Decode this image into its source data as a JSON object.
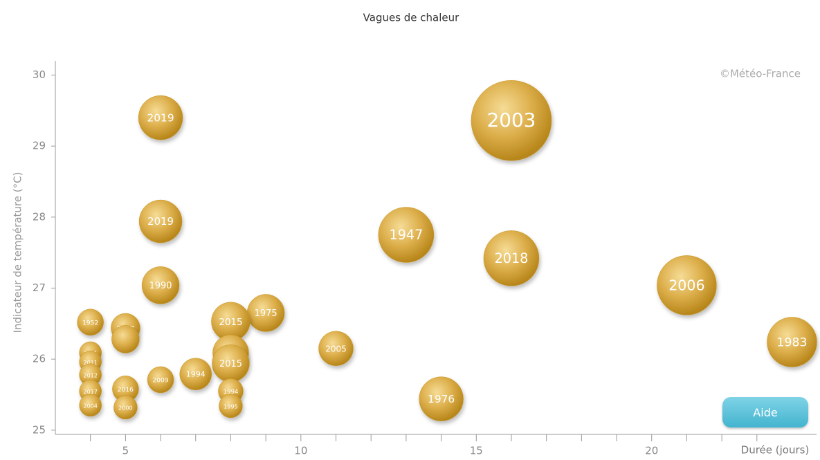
{
  "chart_data": {
    "type": "scatter",
    "title": "Vagues de chaleur",
    "ylabel": "Indicateur de température (°C)",
    "xlabel": "Durée (jours)",
    "annotation": "©Météo-France",
    "button": "Aide",
    "color": "#c9961f",
    "xlim": [
      3,
      24.7
    ],
    "ylim": [
      24.94,
      30.2
    ],
    "xticks": [
      5,
      10,
      15,
      20
    ],
    "xticks_minor": [
      4,
      6,
      7,
      8,
      9,
      11,
      12,
      13,
      14,
      16,
      17,
      18,
      19,
      21,
      22,
      23
    ],
    "yticks": [
      25,
      26,
      27,
      28,
      29,
      30
    ],
    "series": [
      {
        "name": null,
        "labels": [
          "2003",
          "2006",
          "1947",
          "2018",
          "1983",
          "1976",
          "2019",
          "2019",
          "1990",
          "1975",
          "2015",
          null,
          "2015",
          "2005",
          "1994",
          "1952",
          "2017",
          null,
          "2009",
          "2016",
          "2000",
          "1994",
          "1995",
          "2011",
          "2011",
          "2012",
          "2017",
          "2004"
        ],
        "x": [
          16,
          21,
          13,
          16,
          24,
          14,
          6,
          6,
          6,
          9,
          8,
          8,
          8,
          11,
          7,
          4,
          5,
          5,
          6,
          5,
          5,
          8,
          8,
          4,
          4,
          4,
          4,
          4
        ],
        "values": [
          29.36,
          27.04,
          27.75,
          27.42,
          26.24,
          25.44,
          29.4,
          27.94,
          27.04,
          26.65,
          26.53,
          26.09,
          25.94,
          26.15,
          25.79,
          26.52,
          26.44,
          26.28,
          25.71,
          25.58,
          25.32,
          25.55,
          25.34,
          26.09,
          25.96,
          25.78,
          25.55,
          25.35
        ],
        "sizes": [
          58,
          43,
          40,
          40,
          36,
          32,
          32,
          31,
          27,
          27,
          28,
          26,
          27,
          25,
          23,
          19,
          21,
          20,
          19,
          19,
          17,
          18,
          17,
          16,
          16,
          16,
          16,
          16
        ]
      }
    ]
  }
}
